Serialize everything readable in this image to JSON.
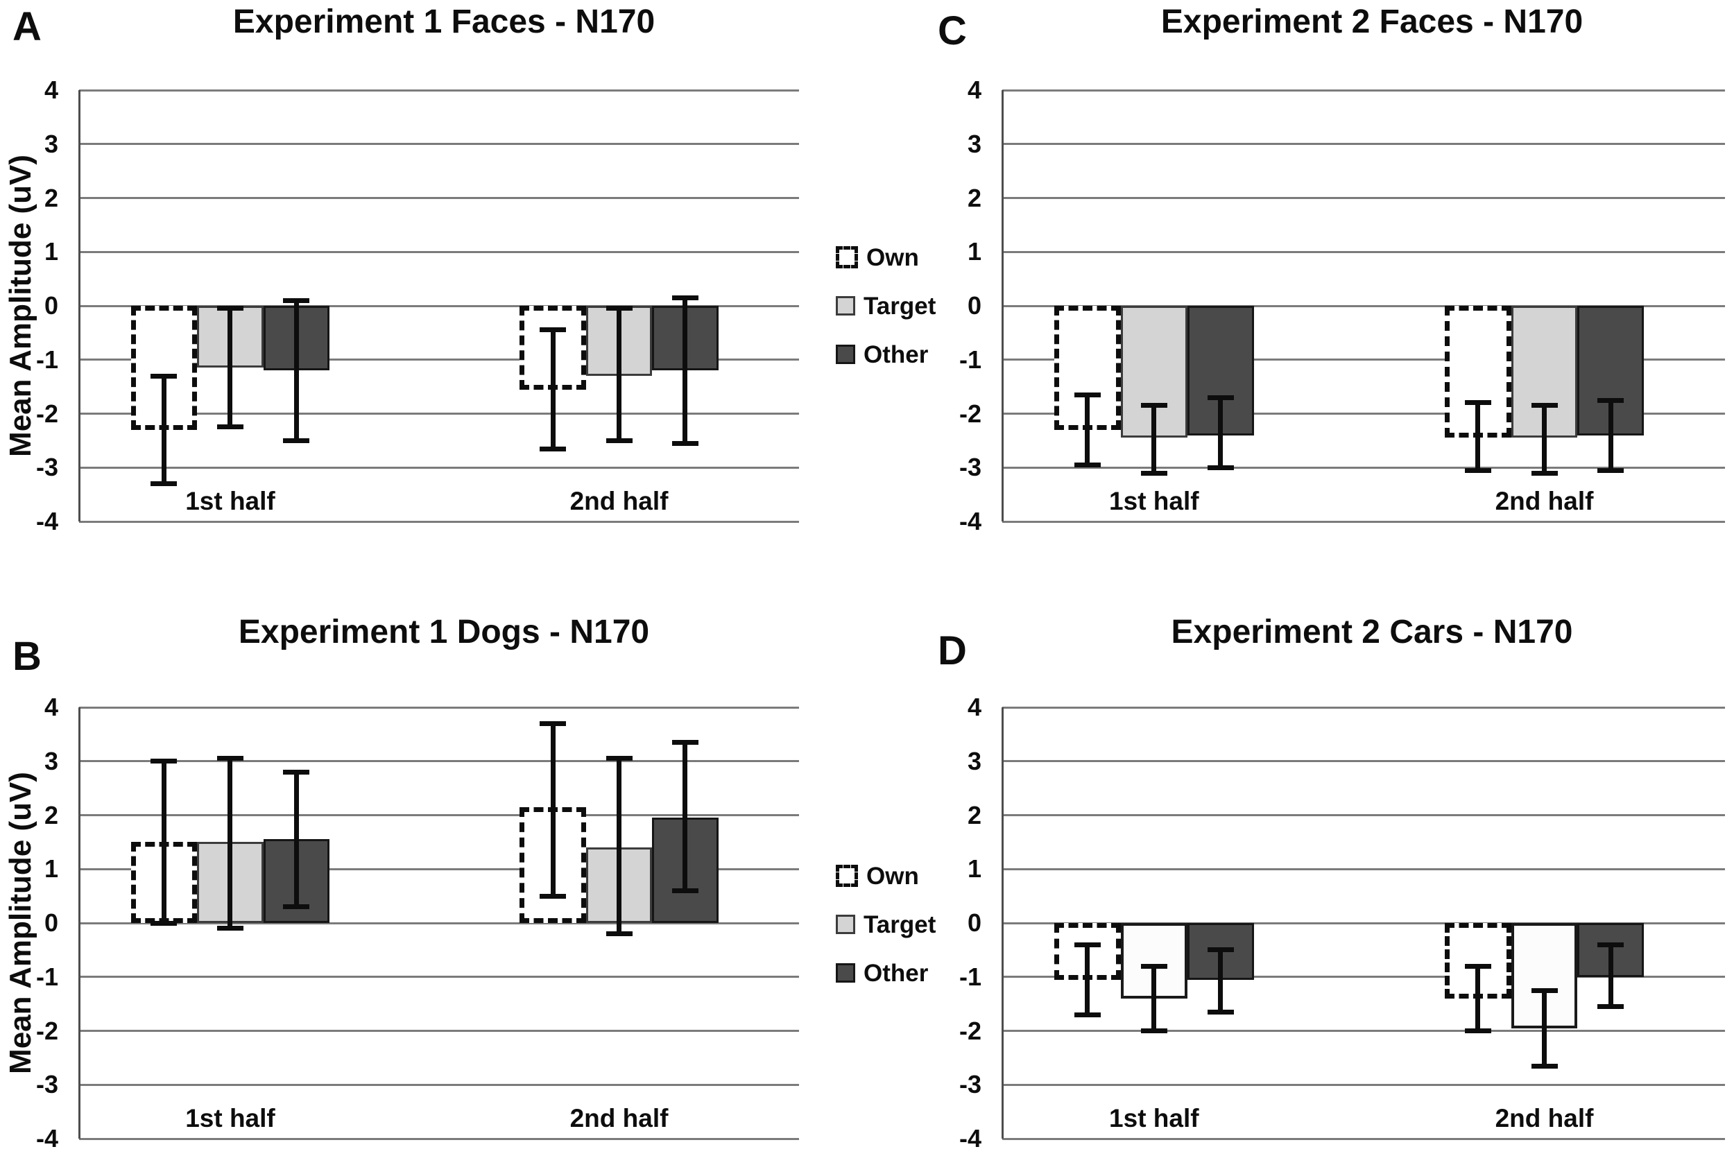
{
  "figure": {
    "y_axis_label": "Mean Amplitude (uV)",
    "y_ticks": [
      "4",
      "3",
      "2",
      "1",
      "0",
      "-1",
      "-2",
      "-3",
      "-4"
    ],
    "y_tick_values": [
      4,
      3,
      2,
      1,
      0,
      -1,
      -2,
      -3,
      -4
    ],
    "categories": [
      "1st half",
      "2nd half"
    ],
    "legend": {
      "items": [
        {
          "label": "Own",
          "style": "dashed"
        },
        {
          "label": "Target",
          "style": "light"
        },
        {
          "label": "Other",
          "style": "dark"
        }
      ]
    },
    "colors": {
      "light_gray": "#d4d4d4",
      "dark_gray": "#4a4a4a",
      "white_fill": "#fcfcfc",
      "grid": "#7b7b7b",
      "axis": "#4d4d4d",
      "ink": "#0d0d0d"
    }
  },
  "chart_data": [
    {
      "panel_label": "A",
      "type": "bar",
      "title": "Experiment 1 Faces - N170",
      "ylabel": "Mean Amplitude (uV)",
      "ylim": [
        -4,
        4
      ],
      "grid": true,
      "categories": [
        "1st half",
        "2nd half"
      ],
      "series": [
        {
          "name": "Own",
          "style": "dashed",
          "values": [
            -2.3,
            -1.55
          ],
          "error_high": [
            -1.3,
            -0.45
          ],
          "error_low": [
            -3.3,
            -2.65
          ]
        },
        {
          "name": "Target",
          "style": "light",
          "values": [
            -1.15,
            -1.3
          ],
          "error_high": [
            -0.05,
            -0.05
          ],
          "error_low": [
            -2.25,
            -2.5
          ]
        },
        {
          "name": "Other",
          "style": "dark",
          "values": [
            -1.2,
            -1.2
          ],
          "error_high": [
            0.1,
            0.15
          ],
          "error_low": [
            -2.5,
            -2.55
          ]
        }
      ]
    },
    {
      "panel_label": "C",
      "type": "bar",
      "title": "Experiment 2 Faces - N170",
      "ylabel": "",
      "ylim": [
        -4,
        4
      ],
      "grid": true,
      "categories": [
        "1st half",
        "2nd half"
      ],
      "series": [
        {
          "name": "Own",
          "style": "dashed",
          "values": [
            -2.3,
            -2.45
          ],
          "error_high": [
            -1.65,
            -1.8
          ],
          "error_low": [
            -2.95,
            -3.05
          ]
        },
        {
          "name": "Target",
          "style": "light",
          "values": [
            -2.45,
            -2.45
          ],
          "error_high": [
            -1.85,
            -1.85
          ],
          "error_low": [
            -3.1,
            -3.1
          ]
        },
        {
          "name": "Other",
          "style": "dark",
          "values": [
            -2.4,
            -2.4
          ],
          "error_high": [
            -1.7,
            -1.75
          ],
          "error_low": [
            -3.0,
            -3.05
          ]
        }
      ]
    },
    {
      "panel_label": "B",
      "type": "bar",
      "title": "Experiment 1 Dogs - N170",
      "ylabel": "Mean Amplitude (uV)",
      "ylim": [
        -4,
        4
      ],
      "grid": true,
      "categories": [
        "1st half",
        "2nd half"
      ],
      "series": [
        {
          "name": "Own",
          "style": "dashed",
          "values": [
            1.5,
            2.15
          ],
          "error_high": [
            3.0,
            3.7
          ],
          "error_low": [
            0.0,
            0.5
          ]
        },
        {
          "name": "Target",
          "style": "light",
          "values": [
            1.5,
            1.4
          ],
          "error_high": [
            3.05,
            3.05
          ],
          "error_low": [
            -0.1,
            -0.2
          ]
        },
        {
          "name": "Other",
          "style": "dark",
          "values": [
            1.55,
            1.95
          ],
          "error_high": [
            2.8,
            3.35
          ],
          "error_low": [
            0.3,
            0.6
          ]
        }
      ]
    },
    {
      "panel_label": "D",
      "type": "bar",
      "title": "Experiment 2 Cars - N170",
      "ylabel": "",
      "ylim": [
        -4,
        4
      ],
      "grid": true,
      "categories": [
        "1st half",
        "2nd half"
      ],
      "series": [
        {
          "name": "Own",
          "style": "dashed",
          "values": [
            -1.05,
            -1.4
          ],
          "error_high": [
            -0.4,
            -0.8
          ],
          "error_low": [
            -1.7,
            -2.0
          ]
        },
        {
          "name": "Target",
          "style": "white",
          "values": [
            -1.4,
            -1.95
          ],
          "error_high": [
            -0.8,
            -1.25
          ],
          "error_low": [
            -2.0,
            -2.65
          ]
        },
        {
          "name": "Other",
          "style": "dark",
          "values": [
            -1.05,
            -1.0
          ],
          "error_high": [
            -0.5,
            -0.4
          ],
          "error_low": [
            -1.65,
            -1.55
          ]
        }
      ]
    }
  ]
}
